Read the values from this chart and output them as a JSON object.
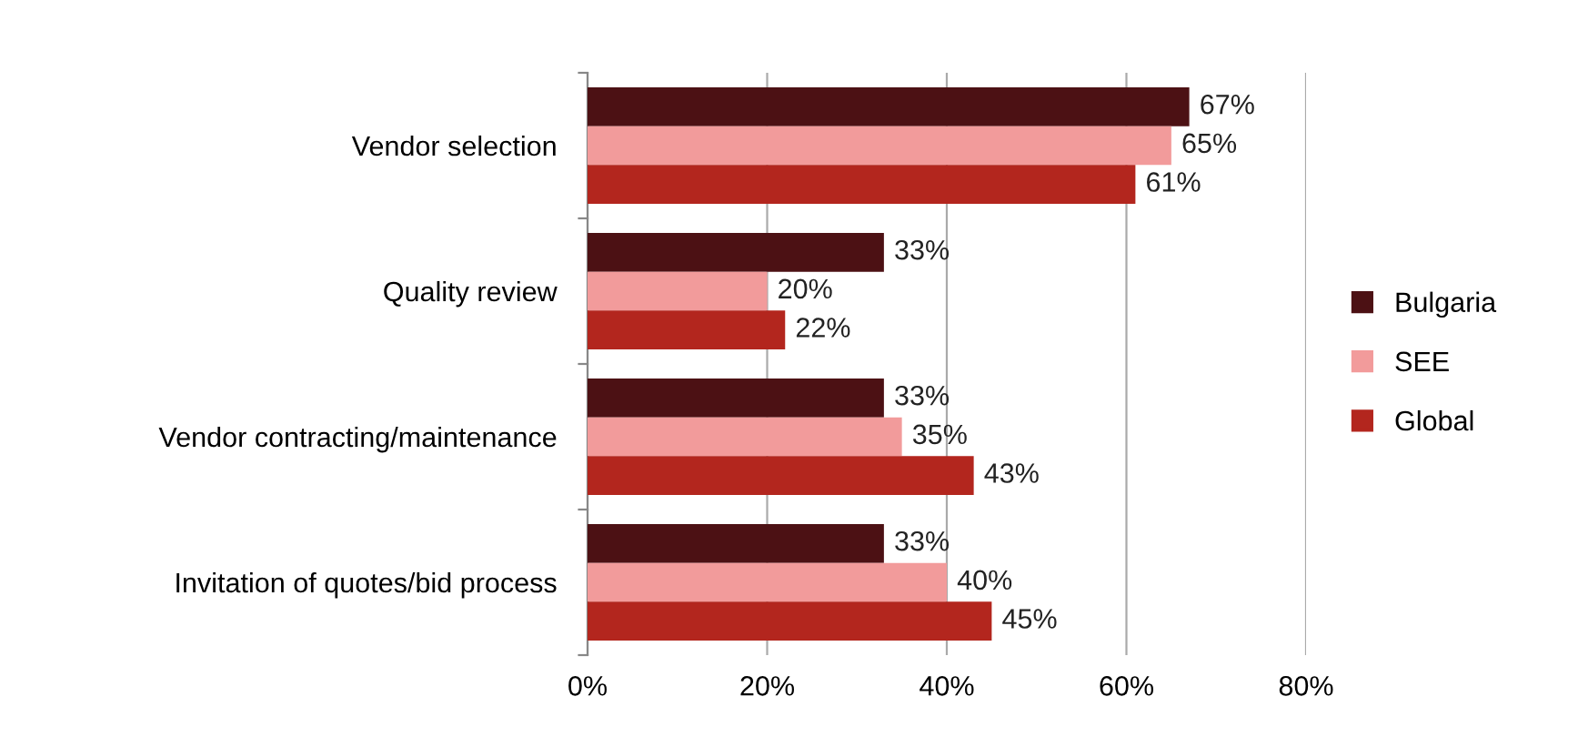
{
  "chart_data": {
    "type": "bar",
    "orientation": "horizontal",
    "categories": [
      "Vendor selection",
      "Quality review",
      "Vendor contracting/maintenance",
      "Invitation of quotes/bid process"
    ],
    "series": [
      {
        "name": "Bulgaria",
        "color": "#4c1114",
        "values": [
          67,
          33,
          33,
          33
        ],
        "value_labels": [
          "67%",
          "33%",
          "33%",
          "33%"
        ]
      },
      {
        "name": "SEE",
        "color": "#f29b9b",
        "values": [
          65,
          20,
          35,
          40
        ],
        "value_labels": [
          "65%",
          "20%",
          "35%",
          "40%"
        ]
      },
      {
        "name": "Global",
        "color": "#b3261e",
        "values": [
          61,
          22,
          43,
          45
        ],
        "value_labels": [
          "61%",
          "22%",
          "43%",
          "45%"
        ]
      }
    ],
    "xlim": [
      0,
      80
    ],
    "xticks": [
      {
        "value": 0,
        "label": "0%"
      },
      {
        "value": 20,
        "label": "20%"
      },
      {
        "value": 40,
        "label": "40%"
      },
      {
        "value": 60,
        "label": "60%"
      },
      {
        "value": 80,
        "label": "80%"
      }
    ],
    "grid": "x",
    "legend": "right"
  }
}
